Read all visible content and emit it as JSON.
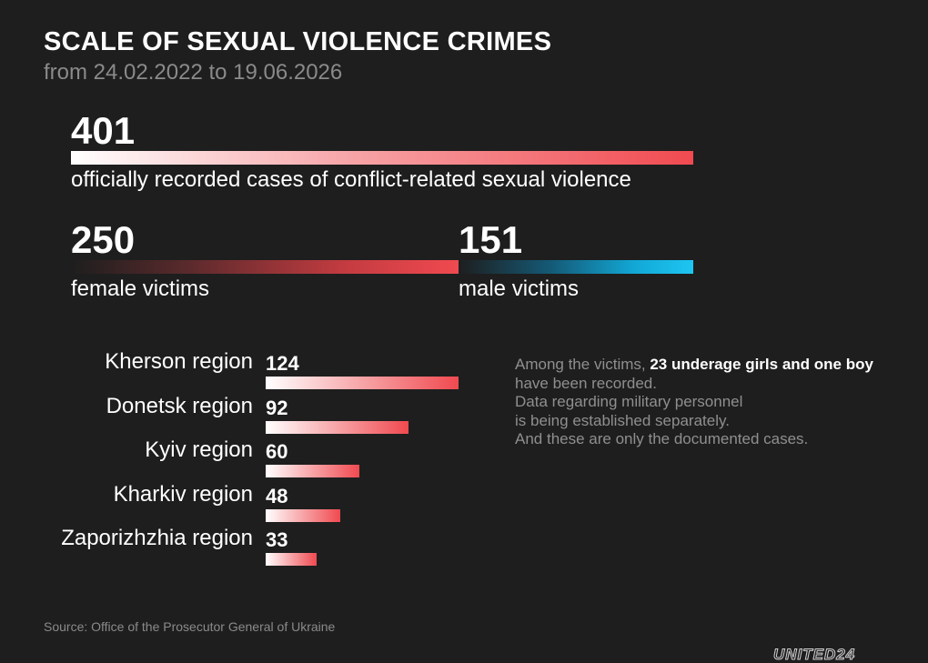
{
  "header": {
    "title": "SCALE OF SEXUAL VIOLENCE CRIMES",
    "subtitle": "from 24.02.2022 to 19.06.2026"
  },
  "totals": {
    "total_value": "401",
    "total_label": "officially recorded cases of conflict-related sexual violence",
    "female_value": "250",
    "female_label": "female victims",
    "male_value": "151",
    "male_label": "male victims"
  },
  "note": {
    "part1": "Among the victims, ",
    "highlight": "23 underage girls and one boy",
    "part2": " have been recorded.",
    "line2": "Data regarding military personnel",
    "line3": "is being established separately.",
    "line4": "And these are only the documented cases."
  },
  "footer": {
    "source": "Source: Office of the Prosecutor General of Ukraine",
    "logo": "UNITED24"
  },
  "colors": {
    "background": "#1e1e1e",
    "female_accent": "#f04a50",
    "male_accent": "#1ec6f2"
  },
  "chart_data": [
    {
      "type": "bar",
      "categories": [
        "female victims",
        "male victims"
      ],
      "values": [
        250,
        151
      ],
      "total": 401
    },
    {
      "type": "bar",
      "categories": [
        "Kherson region",
        "Donetsk region",
        "Kyiv region",
        "Kharkiv region",
        "Zaporizhzhia region"
      ],
      "values": [
        124,
        92,
        60,
        48,
        33
      ]
    }
  ]
}
